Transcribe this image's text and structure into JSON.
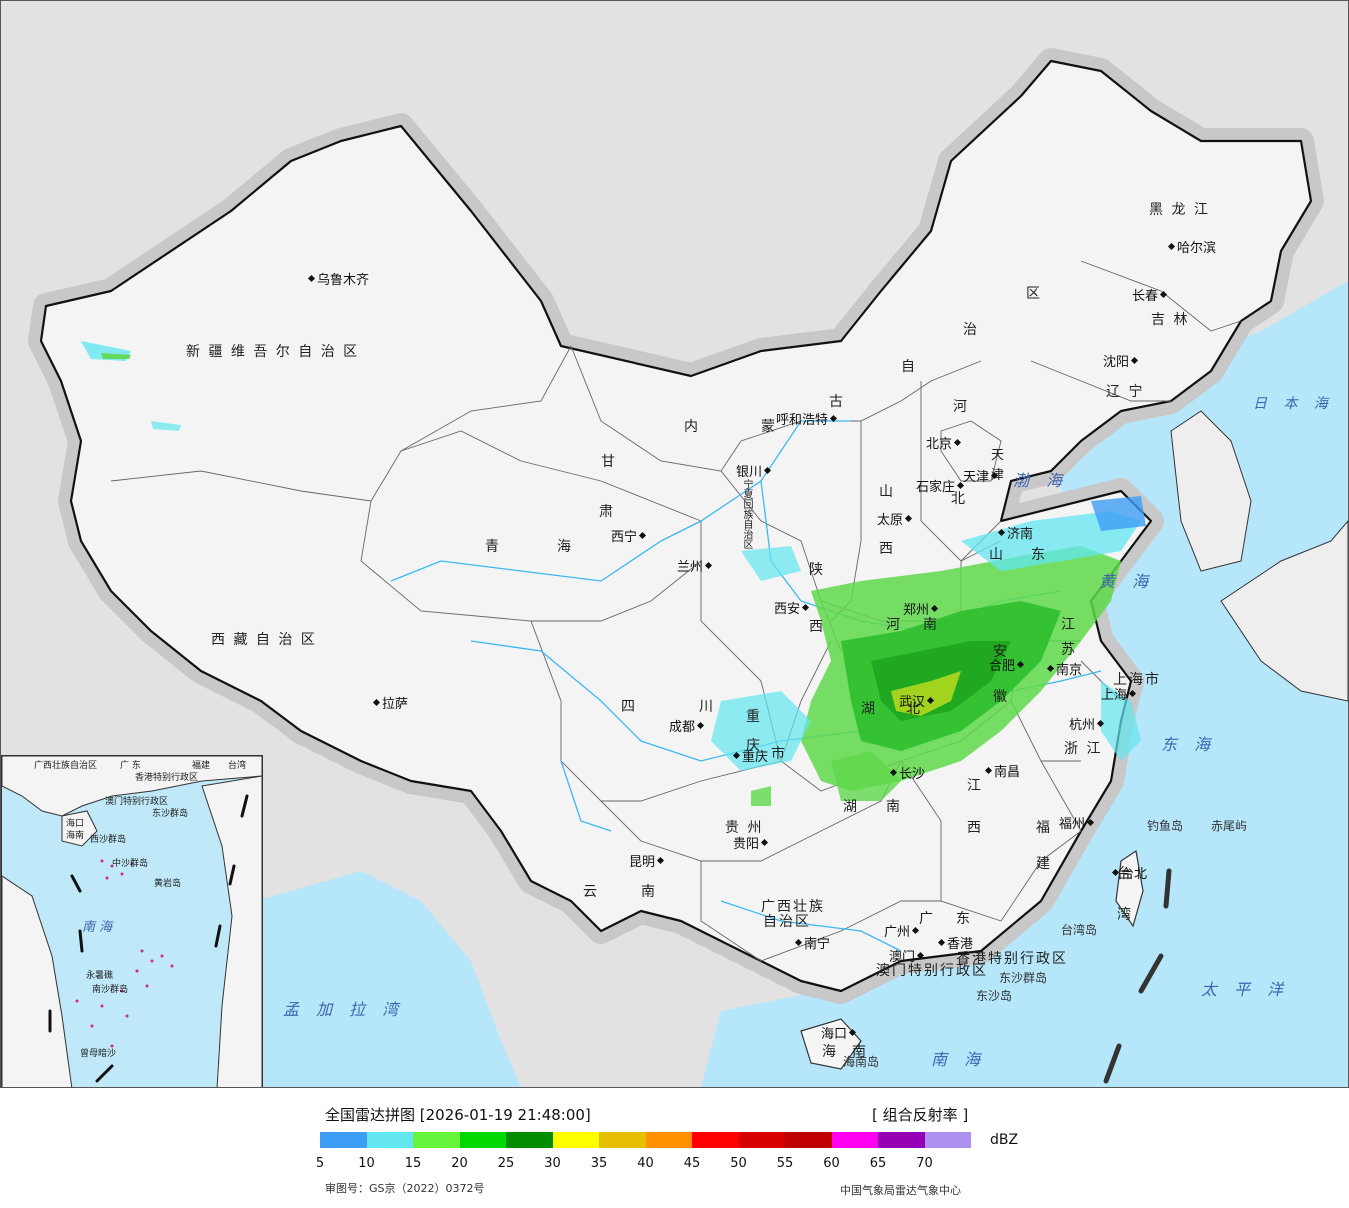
{
  "header": {
    "title": "全国雷达拼图 [2026-01-19 21:48:00]",
    "product": "[ 组合反射率 ]",
    "unit": "dBZ"
  },
  "scale": {
    "colors": [
      "#3e9ef5",
      "#63e6f0",
      "#66f53c",
      "#00d800",
      "#008e00",
      "#ffff00",
      "#e6c000",
      "#ff9000",
      "#ff0000",
      "#d60000",
      "#c00000",
      "#ff00f0",
      "#9600b4",
      "#ad90f0"
    ],
    "ticks": [
      "5",
      "10",
      "15",
      "20",
      "25",
      "30",
      "35",
      "40",
      "45",
      "50",
      "55",
      "60",
      "65",
      "70"
    ]
  },
  "footer": {
    "approval": "审图号：GS京（2022）0372号",
    "agency": "中国气象局雷达气象中心"
  },
  "regions": [
    {
      "name": "新 疆 维 吾 尔 自 治 区"
    },
    {
      "name": "西 藏 自 治 区"
    },
    {
      "name": "青"
    },
    {
      "name": "海"
    },
    {
      "name": "甘"
    },
    {
      "name": "肃"
    },
    {
      "name": "内"
    },
    {
      "name": "蒙"
    },
    {
      "name": "古"
    },
    {
      "name": "自"
    },
    {
      "name": "治"
    },
    {
      "name": "区"
    },
    {
      "name": "黑 龙 江"
    },
    {
      "name": "吉 林"
    },
    {
      "name": "辽 宁"
    },
    {
      "name": "河"
    },
    {
      "name": "北"
    },
    {
      "name": "山"
    },
    {
      "name": "西"
    },
    {
      "name": "陕"
    },
    {
      "name": "西"
    },
    {
      "name": "河"
    },
    {
      "name": "南"
    },
    {
      "name": "山"
    },
    {
      "name": "东"
    },
    {
      "name": "江"
    },
    {
      "name": "苏"
    },
    {
      "name": "安"
    },
    {
      "name": "徽"
    },
    {
      "name": "湖"
    },
    {
      "name": "北"
    },
    {
      "name": "湖"
    },
    {
      "name": "南"
    },
    {
      "name": "江"
    },
    {
      "name": "西"
    },
    {
      "name": "浙 江"
    },
    {
      "name": "福"
    },
    {
      "name": "建"
    },
    {
      "name": "广"
    },
    {
      "name": "东"
    },
    {
      "name": "广西壮族"
    },
    {
      "name": "自治区"
    },
    {
      "name": "贵 州"
    },
    {
      "name": "云"
    },
    {
      "name": "南"
    },
    {
      "name": "四"
    },
    {
      "name": "川"
    },
    {
      "name": "重"
    },
    {
      "name": "庆"
    },
    {
      "name": "市"
    },
    {
      "name": "海"
    },
    {
      "name": "南"
    },
    {
      "name": "上海市"
    },
    {
      "name": "台"
    },
    {
      "name": "湾"
    },
    {
      "name": "天"
    },
    {
      "name": "津"
    },
    {
      "name": "宁夏回族自治区"
    },
    {
      "name": "香港特别行政区"
    },
    {
      "name": "澳门特别行政区"
    }
  ],
  "cities": [
    {
      "name": "乌鲁木齐"
    },
    {
      "name": "拉萨"
    },
    {
      "name": "西宁"
    },
    {
      "name": "兰州"
    },
    {
      "name": "银川"
    },
    {
      "name": "呼和浩特"
    },
    {
      "name": "北京"
    },
    {
      "name": "天津"
    },
    {
      "name": "石家庄"
    },
    {
      "name": "太原"
    },
    {
      "name": "济南"
    },
    {
      "name": "郑州"
    },
    {
      "name": "西安"
    },
    {
      "name": "哈尔滨"
    },
    {
      "name": "长春"
    },
    {
      "name": "沈阳"
    },
    {
      "name": "南京"
    },
    {
      "name": "合肥"
    },
    {
      "name": "上海"
    },
    {
      "name": "杭州"
    },
    {
      "name": "武汉"
    },
    {
      "name": "南昌"
    },
    {
      "name": "长沙"
    },
    {
      "name": "福州"
    },
    {
      "name": "台北"
    },
    {
      "name": "成都"
    },
    {
      "name": "重庆"
    },
    {
      "name": "贵阳"
    },
    {
      "name": "昆明"
    },
    {
      "name": "南宁"
    },
    {
      "name": "广州"
    },
    {
      "name": "澳门"
    },
    {
      "name": "香港"
    },
    {
      "name": "海口"
    }
  ],
  "seas": [
    {
      "name": "日 本 海"
    },
    {
      "name": "渤 海"
    },
    {
      "name": "黄 海"
    },
    {
      "name": "东 海"
    },
    {
      "name": "太 平 洋"
    },
    {
      "name": "南 海"
    },
    {
      "name": "孟 加 拉 湾"
    }
  ],
  "islands": [
    {
      "name": "钓鱼岛"
    },
    {
      "name": "赤尾屿"
    },
    {
      "name": "台湾岛"
    },
    {
      "name": "东沙群岛"
    },
    {
      "name": "东沙岛"
    },
    {
      "name": "海南岛"
    }
  ],
  "inset": {
    "labels": [
      "广西壮族自治区",
      "广 东",
      "福建",
      "台湾",
      "香港特别行政区",
      "澳门特别行政区",
      "东沙群岛",
      "海口",
      "海南",
      "西沙群岛",
      "中沙群岛",
      "黄岩岛",
      "南 海",
      "永暑礁",
      "南沙群岛",
      "曾母暗沙"
    ]
  }
}
